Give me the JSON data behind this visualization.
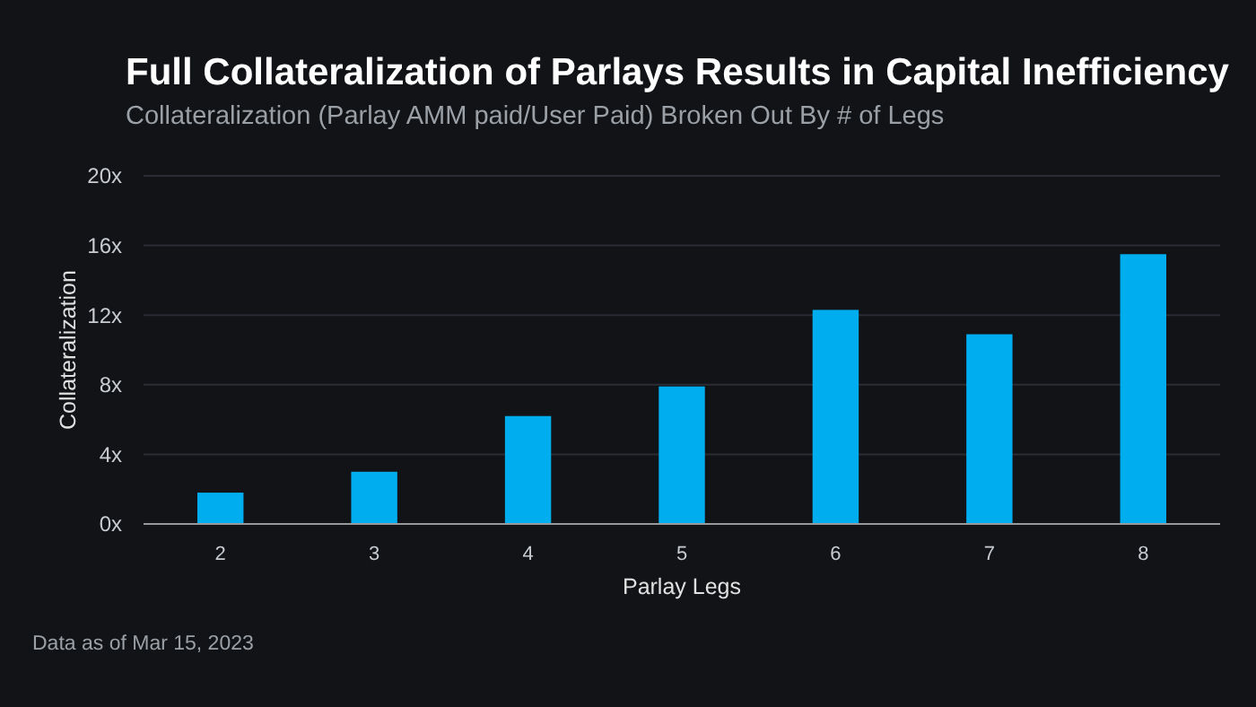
{
  "chart_data": {
    "type": "bar",
    "title": "Full Collateralization of Parlays Results in Capital Inefficiency",
    "subtitle": "Collateralization (Parlay AMM paid/User Paid) Broken Out By # of Legs",
    "xlabel": "Parlay Legs",
    "ylabel": "Collateralization",
    "categories": [
      "2",
      "3",
      "4",
      "5",
      "6",
      "7",
      "8"
    ],
    "values": [
      1.8,
      3.0,
      6.2,
      7.9,
      12.3,
      10.9,
      15.5
    ],
    "color": "#00aeef",
    "ylim": [
      0,
      20
    ],
    "yticks": [
      {
        "value": 0,
        "label": "0x"
      },
      {
        "value": 4,
        "label": "4x"
      },
      {
        "value": 8,
        "label": "8x"
      },
      {
        "value": 12,
        "label": "12x"
      },
      {
        "value": 16,
        "label": "16x"
      },
      {
        "value": 20,
        "label": "20x"
      }
    ],
    "grid": "y",
    "annotations": [
      "Data as of Mar 15, 2023"
    ]
  }
}
